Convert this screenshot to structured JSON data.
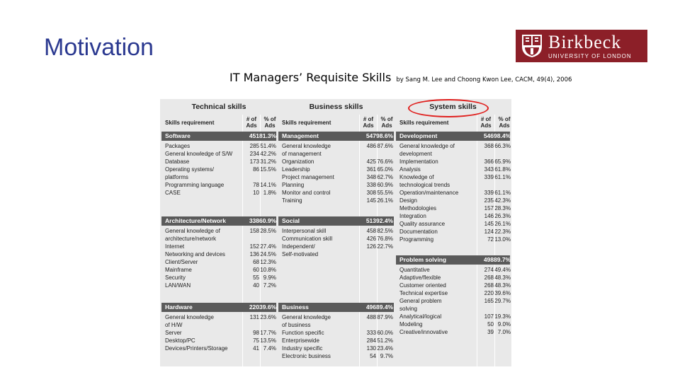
{
  "slide": {
    "title": "Motivation",
    "subtitle": "IT Managers’ Requisite Skills",
    "citation": "by Sang M. Lee and Choong Kwon Lee, CACM, 49(4), 2006",
    "logo": {
      "name": "Birkbeck",
      "tagline": "UNIVERSITY OF LONDON"
    }
  },
  "table": {
    "headers": {
      "skills": "Skills requirement",
      "ads": "# of Ads",
      "pct": "% of Ads"
    },
    "columns": [
      {
        "title": "Technical skills",
        "groups": [
          {
            "name": "Software",
            "ads": "451",
            "pct": "81.3%",
            "rows": [
              [
                "Packages",
                "285",
                "51.4%"
              ],
              [
                "General knowledge of S/W",
                "234",
                "42.2%"
              ],
              [
                "Database",
                "173",
                "31.2%"
              ],
              [
                "Operating systems/",
                "86",
                "15.5%"
              ],
              [
                "   platforms",
                "",
                ""
              ],
              [
                "Programming language",
                "78",
                "14.1%"
              ],
              [
                "CASE",
                "10",
                "1.8%"
              ]
            ]
          },
          {
            "name": "Architecture/Network",
            "ads": "338",
            "pct": "60.9%",
            "rows": [
              [
                "General knowledge of",
                "158",
                "28.5%"
              ],
              [
                "   architecture/network",
                "",
                ""
              ],
              [
                "Internet",
                "152",
                "27.4%"
              ],
              [
                "Networking and devices",
                "136",
                "24.5%"
              ],
              [
                "Client/Server",
                "68",
                "12.3%"
              ],
              [
                "Mainframe",
                "60",
                "10.8%"
              ],
              [
                "Security",
                "55",
                "9.9%"
              ],
              [
                "LAN/WAN",
                "40",
                "7.2%"
              ]
            ]
          },
          {
            "name": "Hardware",
            "ads": "220",
            "pct": "39.6%",
            "rows": [
              [
                "General knowledge",
                "131",
                "23.6%"
              ],
              [
                "   of H/W",
                "",
                ""
              ],
              [
                "Server",
                "98",
                "17.7%"
              ],
              [
                "Desktop/PC",
                "75",
                "13.5%"
              ],
              [
                "Devices/Printers/Storage",
                "41",
                "7.4%"
              ]
            ]
          }
        ]
      },
      {
        "title": "Business skills",
        "groups": [
          {
            "name": "Management",
            "ads": "547",
            "pct": "98.6%",
            "rows": [
              [
                "General knowledge",
                "486",
                "87.6%"
              ],
              [
                "   of management",
                "",
                ""
              ],
              [
                "Organization",
                "425",
                "76.6%"
              ],
              [
                "Leadership",
                "361",
                "65.0%"
              ],
              [
                "Project management",
                "348",
                "62.7%"
              ],
              [
                "Planning",
                "338",
                "60.9%"
              ],
              [
                "Monitor and control",
                "308",
                "55.5%"
              ],
              [
                "Training",
                "145",
                "26.1%"
              ]
            ]
          },
          {
            "name": "Social",
            "ads": "513",
            "pct": "92.4%",
            "rows": [
              [
                "Interpersonal skill",
                "458",
                "82.5%"
              ],
              [
                "Communication skill",
                "426",
                "76.8%"
              ],
              [
                "Independent/",
                "126",
                "22.7%"
              ],
              [
                "   Self-motivated",
                "",
                ""
              ]
            ]
          },
          {
            "name": "Business",
            "ads": "496",
            "pct": "89.4%",
            "rows": [
              [
                "General knowledge",
                "488",
                "87.9%"
              ],
              [
                "   of business",
                "",
                ""
              ],
              [
                "Function specific",
                "333",
                "60.0%"
              ],
              [
                "Enterprisewide",
                "284",
                "51.2%"
              ],
              [
                "Industry specific",
                "130",
                "23.4%"
              ],
              [
                "Electronic business",
                "54",
                "9.7%"
              ]
            ]
          }
        ]
      },
      {
        "title": "System skills",
        "groups": [
          {
            "name": "Development",
            "ads": "546",
            "pct": "98.4%",
            "rows": [
              [
                "General knowledge of",
                "368",
                "66.3%"
              ],
              [
                "   development",
                "",
                ""
              ],
              [
                "Implementation",
                "366",
                "65.9%"
              ],
              [
                "Analysis",
                "343",
                "61.8%"
              ],
              [
                "Knowledge of",
                "339",
                "61.1%"
              ],
              [
                "   technological trends",
                "",
                ""
              ],
              [
                "Operation/maintenance",
                "339",
                "61.1%"
              ],
              [
                "Design",
                "235",
                "42.3%"
              ],
              [
                "Methodologies",
                "157",
                "28.3%"
              ],
              [
                "Integration",
                "146",
                "26.3%"
              ],
              [
                "Quality assurance",
                "145",
                "26.1%"
              ],
              [
                "Documentation",
                "124",
                "22.3%"
              ],
              [
                "Programming",
                "72",
                "13.0%"
              ]
            ]
          },
          {
            "name": "Problem solving",
            "ads": "498",
            "pct": "89.7%",
            "rows": [
              [
                "Quantitative",
                "274",
                "49.4%"
              ],
              [
                "Adaptive/flexible",
                "268",
                "48.3%"
              ],
              [
                "Customer oriented",
                "268",
                "48.3%"
              ],
              [
                "Technical expertise",
                "220",
                "39.6%"
              ],
              [
                "General problem",
                "165",
                "29.7%"
              ],
              [
                "   solving",
                "",
                ""
              ],
              [
                "Analytical/logical",
                "107",
                "19.3%"
              ],
              [
                "Modeling",
                "50",
                "9.0%"
              ],
              [
                "Creative/innovative",
                "39",
                "7.0%"
              ]
            ]
          }
        ]
      }
    ]
  }
}
